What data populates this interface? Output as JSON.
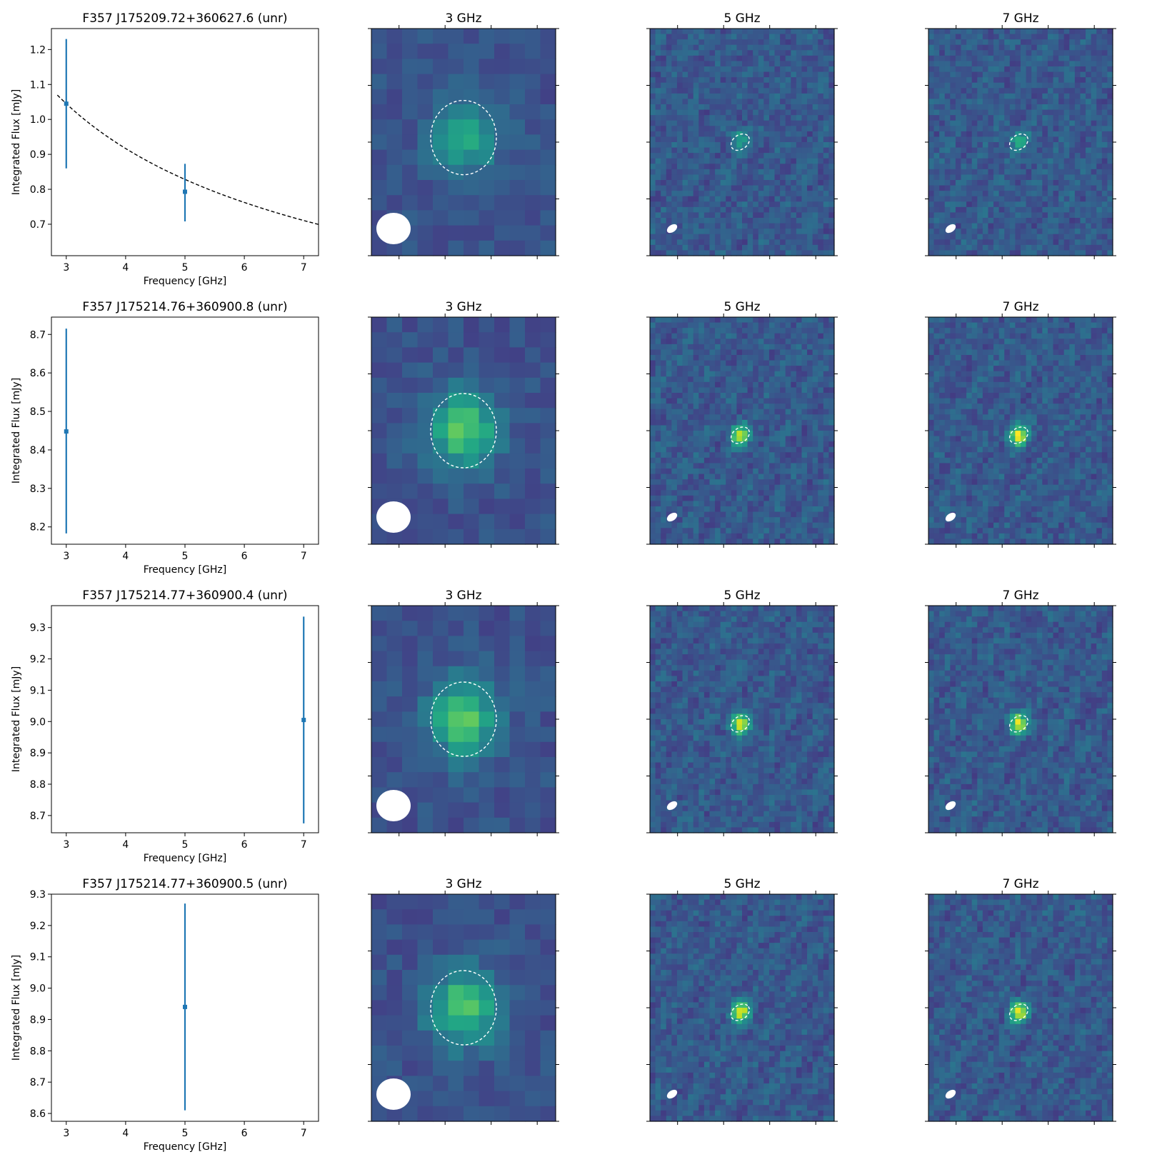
{
  "chart_data": [
    {
      "type": "scatter",
      "title": "F357 J175209.72+360627.6 (unr)",
      "xlabel": "Frequency [GHz]",
      "ylabel": "Integrated Flux [mJy]",
      "xlim": [
        2.75,
        7.25
      ],
      "ylim": [
        0.61,
        1.26
      ],
      "xticks": [
        3,
        4,
        5,
        6,
        7
      ],
      "yticks": [
        0.7,
        0.8,
        0.9,
        1.0,
        1.1,
        1.2
      ],
      "ytick_labels": [
        "0.7",
        "0.8",
        "0.9",
        "1.0",
        "1.1",
        "1.2"
      ],
      "points": [
        {
          "x": 3,
          "y": 1.045,
          "yerr_low": 0.86,
          "yerr_high": 1.23
        },
        {
          "x": 5,
          "y": 0.793,
          "yerr_low": 0.708,
          "yerr_high": 0.873
        }
      ],
      "fit": {
        "style": "dashed",
        "s_at_3ghz": 1.045,
        "alpha": -0.455
      }
    },
    {
      "type": "scatter",
      "title": "F357 J175214.76+360900.8 (unr)",
      "xlabel": "Frequency [GHz]",
      "ylabel": "Integrated Flux [mJy]",
      "xlim": [
        2.75,
        7.25
      ],
      "ylim": [
        8.155,
        8.745
      ],
      "xticks": [
        3,
        4,
        5,
        6,
        7
      ],
      "yticks": [
        8.2,
        8.3,
        8.4,
        8.5,
        8.6,
        8.7
      ],
      "ytick_labels": [
        "8.2",
        "8.3",
        "8.4",
        "8.5",
        "8.6",
        "8.7"
      ],
      "points": [
        {
          "x": 3,
          "y": 8.448,
          "yerr_low": 8.183,
          "yerr_high": 8.715
        }
      ]
    },
    {
      "type": "scatter",
      "title": "F357 J175214.77+360900.4 (unr)",
      "xlabel": "Frequency [GHz]",
      "ylabel": "Integrated Flux [mJy]",
      "xlim": [
        2.75,
        7.25
      ],
      "ylim": [
        8.645,
        9.37
      ],
      "xticks": [
        3,
        4,
        5,
        6,
        7
      ],
      "yticks": [
        8.7,
        8.8,
        8.9,
        9.0,
        9.1,
        9.2,
        9.3
      ],
      "ytick_labels": [
        "8.7",
        "8.8",
        "8.9",
        "9.0",
        "9.1",
        "9.2",
        "9.3"
      ],
      "points": [
        {
          "x": 7,
          "y": 9.005,
          "yerr_low": 8.675,
          "yerr_high": 9.335
        }
      ]
    },
    {
      "type": "scatter",
      "title": "F357 J175214.77+360900.5 (unr)",
      "xlabel": "Frequency [GHz]",
      "ylabel": "Integrated Flux [mJy]",
      "xlim": [
        2.75,
        7.25
      ],
      "ylim": [
        8.575,
        9.3
      ],
      "xticks": [
        3,
        4,
        5,
        6,
        7
      ],
      "yticks": [
        8.6,
        8.7,
        8.8,
        8.9,
        9.0,
        9.1,
        9.2,
        9.3
      ],
      "ytick_labels": [
        "8.6",
        "8.7",
        "8.8",
        "8.9",
        "9.0",
        "9.1",
        "9.2",
        "9.3"
      ],
      "points": [
        {
          "x": 5,
          "y": 8.94,
          "yerr_low": 8.61,
          "yerr_high": 9.27
        }
      ]
    }
  ],
  "image_panels": {
    "titles": [
      "3 GHz",
      "5 GHz",
      "7 GHz"
    ],
    "colormap": "viridis",
    "image_colors": {
      "background": "#3b528b",
      "dark": "#45317d",
      "teal": "#26828e",
      "green": "#35b779",
      "bright": "#fde725",
      "contour": "#ffffff",
      "beam": "#ffffff"
    },
    "error_color": "#1f77b4"
  }
}
